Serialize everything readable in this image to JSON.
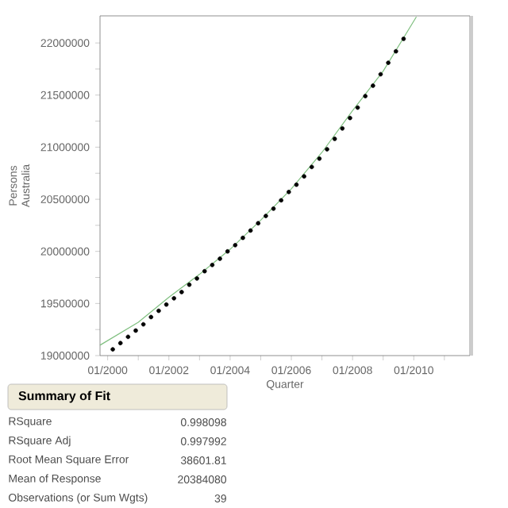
{
  "chart_data": {
    "type": "scatter",
    "xlabel": "Quarter",
    "ylabel": "Persons Australia",
    "xlim": [
      "1999-10",
      "2011-11"
    ],
    "ylim": [
      19000000,
      22260000
    ],
    "xticks": [
      {
        "value": "2000-01",
        "label": "01/2000"
      },
      {
        "value": "2001-01",
        "label": null
      },
      {
        "value": "2002-01",
        "label": "01/2002"
      },
      {
        "value": "2003-01",
        "label": null
      },
      {
        "value": "2004-01",
        "label": "01/2004"
      },
      {
        "value": "2005-01",
        "label": null
      },
      {
        "value": "2006-01",
        "label": "01/2006"
      },
      {
        "value": "2007-01",
        "label": null
      },
      {
        "value": "2008-01",
        "label": "01/2008"
      },
      {
        "value": "2009-01",
        "label": null
      },
      {
        "value": "2010-01",
        "label": "01/2010"
      },
      {
        "value": "2011-01",
        "label": null
      }
    ],
    "yticks": [
      19000000,
      {
        "value": 19250000,
        "label": null
      },
      19500000,
      {
        "value": 19750000,
        "label": null
      },
      20000000,
      {
        "value": 20250000,
        "label": null
      },
      20500000,
      {
        "value": 20750000,
        "label": null
      },
      21000000,
      {
        "value": 21250000,
        "label": null
      },
      21500000,
      {
        "value": 21750000,
        "label": null
      },
      22000000
    ],
    "grid": false,
    "series": [
      {
        "color": "#000000",
        "x": [
          "2000-03",
          "2000-06",
          "2000-09",
          "2000-12",
          "2001-03",
          "2001-06",
          "2001-09",
          "2001-12",
          "2002-03",
          "2002-06",
          "2002-09",
          "2002-12",
          "2003-03",
          "2003-06",
          "2003-09",
          "2003-12",
          "2004-03",
          "2004-06",
          "2004-09",
          "2004-12",
          "2005-03",
          "2005-06",
          "2005-09",
          "2005-12",
          "2006-03",
          "2006-06",
          "2006-09",
          "2006-12",
          "2007-03",
          "2007-06",
          "2007-09",
          "2007-12",
          "2008-03",
          "2008-06",
          "2008-09",
          "2008-12",
          "2009-03",
          "2009-06",
          "2009-09"
        ],
        "values": [
          19060000,
          19120000,
          19180000,
          19240000,
          19300000,
          19370000,
          19430000,
          19490000,
          19550000,
          19610000,
          19680000,
          19740000,
          19810000,
          19870000,
          19930000,
          20000000,
          20060000,
          20130000,
          20200000,
          20270000,
          20340000,
          20410000,
          20490000,
          20570000,
          20640000,
          20720000,
          20810000,
          20890000,
          20980000,
          21080000,
          21180000,
          21280000,
          21380000,
          21490000,
          21590000,
          21700000,
          21810000,
          21920000,
          22040000
        ]
      },
      {
        "type": "line",
        "color": "#7fbf7f",
        "x": [
          "1999-10",
          "2001-01",
          "2002-01",
          "2003-01",
          "2004-01",
          "2005-01",
          "2006-01",
          "2007-01",
          "2008-01",
          "2009-01",
          "2010-02"
        ],
        "values": [
          19100000,
          19320000,
          19560000,
          19780000,
          20020000,
          20300000,
          20600000,
          20950000,
          21350000,
          21730000,
          22250000
        ]
      }
    ],
    "annotations": [
      "Summary of Fit",
      "RSquare",
      "0.998098",
      "RSquare Adj",
      "0.997992",
      "Root Mean Square Error",
      "38601.81",
      "Mean of Response",
      "20384080",
      "Observations (or Sum Wgts)",
      "39"
    ]
  }
}
